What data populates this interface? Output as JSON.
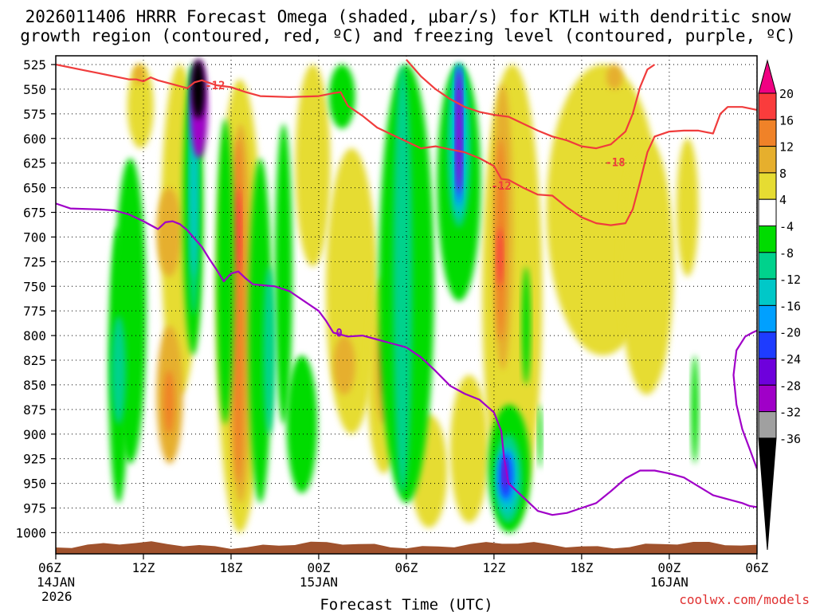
{
  "chart_data": {
    "type": "heatmap",
    "title_line1": "2026011406 HRRR Forecast Omega (shaded, μbar/s) for KTLH with dendritic snow",
    "title_line2": "growth region (contoured, red, ºC) and freezing level (contoured, purple, ºC)",
    "xlabel": "Forecast Time (UTC)",
    "credit": "coolwx.com/models",
    "ylabel": "",
    "y_axis": {
      "unit": "hPa",
      "range": [
        1010,
        520
      ],
      "ticks": [
        "525",
        "550",
        "575",
        "600",
        "625",
        "650",
        "675",
        "700",
        "725",
        "750",
        "775",
        "800",
        "825",
        "850",
        "875",
        "900",
        "925",
        "950",
        "975",
        "1000"
      ]
    },
    "x_axis": {
      "unit": "forecast hour",
      "range": [
        0,
        48
      ],
      "ticks": [
        {
          "hour": 0,
          "l1": "06Z",
          "l2": "14JAN",
          "l3": "2026"
        },
        {
          "hour": 6,
          "l1": "12Z",
          "l2": "",
          "l3": ""
        },
        {
          "hour": 12,
          "l1": "18Z",
          "l2": "",
          "l3": ""
        },
        {
          "hour": 18,
          "l1": "00Z",
          "l2": "15JAN",
          "l3": ""
        },
        {
          "hour": 24,
          "l1": "06Z",
          "l2": "",
          "l3": ""
        },
        {
          "hour": 30,
          "l1": "12Z",
          "l2": "",
          "l3": ""
        },
        {
          "hour": 36,
          "l1": "18Z",
          "l2": "",
          "l3": ""
        },
        {
          "hour": 42,
          "l1": "00Z",
          "l2": "16JAN",
          "l3": ""
        },
        {
          "hour": 48,
          "l1": "06Z",
          "l2": "",
          "l3": ""
        }
      ]
    },
    "colorbar": {
      "labels": [
        "20",
        "16",
        "12",
        "8",
        "4",
        "-4",
        "-8",
        "-12",
        "-16",
        "-20",
        "-24",
        "-28",
        "-32",
        "-36"
      ],
      "bins": [
        {
          "range": "-36 and below",
          "color": "#000000"
        },
        {
          "range": "-36 to -32",
          "color": "#a0a0a0"
        },
        {
          "range": "-32 to -28",
          "color": "#a000c8"
        },
        {
          "range": "-28 to -24",
          "color": "#6e00dc"
        },
        {
          "range": "-24 to -20",
          "color": "#1e3cff"
        },
        {
          "range": "-20 to -16",
          "color": "#00a0ff"
        },
        {
          "range": "-16 to -12",
          "color": "#00c8c8"
        },
        {
          "range": "-12 to -8",
          "color": "#00d28c"
        },
        {
          "range": "-8 to -4",
          "color": "#00dc00"
        },
        {
          "range": "-4 to 4",
          "color": "#ffffff"
        },
        {
          "range": "4 to 8",
          "color": "#e6dc32"
        },
        {
          "range": "8 to 12",
          "color": "#e6af2d"
        },
        {
          "range": "12 to 16",
          "color": "#f08228"
        },
        {
          "range": "16 to 20",
          "color": "#fa3c3c"
        },
        {
          "range": "20 and above",
          "color": "#f00082"
        }
      ]
    },
    "shaded_regions": [
      {
        "value": 5,
        "t0": 4.9,
        "t1": 6.7,
        "p0": 525,
        "p1": 610
      },
      {
        "value": 5,
        "t0": 7.2,
        "t1": 9.8,
        "p0": 525,
        "p1": 860
      },
      {
        "value": 5,
        "t0": 11.0,
        "t1": 14.2,
        "p0": 540,
        "p1": 1000
      },
      {
        "value": 5,
        "t0": 16.4,
        "t1": 18.8,
        "p0": 525,
        "p1": 730
      },
      {
        "value": 5,
        "t0": 18.5,
        "t1": 22.0,
        "p0": 610,
        "p1": 900
      },
      {
        "value": 5,
        "t0": 21.3,
        "t1": 23.6,
        "p0": 740,
        "p1": 940
      },
      {
        "value": 5,
        "t0": 24.3,
        "t1": 26.8,
        "p0": 880,
        "p1": 995
      },
      {
        "value": 5,
        "t0": 27.0,
        "t1": 29.6,
        "p0": 840,
        "p1": 990
      },
      {
        "value": 5,
        "t0": 29.2,
        "t1": 33.3,
        "p0": 525,
        "p1": 990
      },
      {
        "value": 5,
        "t0": 33.6,
        "t1": 41.3,
        "p0": 525,
        "p1": 820
      },
      {
        "value": 5,
        "t0": 38.6,
        "t1": 42.3,
        "p0": 600,
        "p1": 860
      },
      {
        "value": 5,
        "t0": 42.5,
        "t1": 44.0,
        "p0": 600,
        "p1": 740
      },
      {
        "value": 9,
        "t0": 5.3,
        "t1": 6.1,
        "p0": 525,
        "p1": 545
      },
      {
        "value": 9,
        "t0": 6.9,
        "t1": 8.6,
        "p0": 650,
        "p1": 740
      },
      {
        "value": 9,
        "t0": 6.9,
        "t1": 8.7,
        "p0": 790,
        "p1": 930
      },
      {
        "value": 9,
        "t0": 11.8,
        "t1": 13.5,
        "p0": 585,
        "p1": 970
      },
      {
        "value": 9,
        "t0": 19.0,
        "t1": 20.5,
        "p0": 800,
        "p1": 860
      },
      {
        "value": 9,
        "t0": 21.9,
        "t1": 23.0,
        "p0": 780,
        "p1": 890
      },
      {
        "value": 9,
        "t0": 29.9,
        "t1": 31.3,
        "p0": 545,
        "p1": 835
      },
      {
        "value": 9,
        "t0": 37.7,
        "t1": 38.8,
        "p0": 525,
        "p1": 550
      },
      {
        "value": 13,
        "t0": 12.1,
        "t1": 12.9,
        "p0": 600,
        "p1": 950
      },
      {
        "value": 13,
        "t0": 22.2,
        "t1": 22.8,
        "p0": 805,
        "p1": 860
      },
      {
        "value": 13,
        "t0": 30.1,
        "t1": 30.8,
        "p0": 600,
        "p1": 805
      },
      {
        "value": 13,
        "t0": 7.4,
        "t1": 8.1,
        "p0": 835,
        "p1": 900
      },
      {
        "value": 18,
        "t0": 12.3,
        "t1": 12.7,
        "p0": 650,
        "p1": 740
      },
      {
        "value": 18,
        "t0": 30.2,
        "t1": 30.6,
        "p0": 690,
        "p1": 750
      },
      {
        "value": -6,
        "t0": 4.0,
        "t1": 6.2,
        "p0": 620,
        "p1": 930
      },
      {
        "value": -6,
        "t0": 3.6,
        "t1": 5.0,
        "p0": 690,
        "p1": 970
      },
      {
        "value": -6,
        "t0": 8.7,
        "t1": 10.1,
        "p0": 525,
        "p1": 820
      },
      {
        "value": -6,
        "t0": 11.0,
        "t1": 12.2,
        "p0": 580,
        "p1": 890
      },
      {
        "value": -6,
        "t0": 13.2,
        "t1": 14.8,
        "p0": 620,
        "p1": 970
      },
      {
        "value": -6,
        "t0": 15.0,
        "t1": 16.2,
        "p0": 585,
        "p1": 890
      },
      {
        "value": -6,
        "t0": 15.8,
        "t1": 17.9,
        "p0": 820,
        "p1": 960
      },
      {
        "value": -6,
        "t0": 18.7,
        "t1": 20.5,
        "p0": 525,
        "p1": 590
      },
      {
        "value": -6,
        "t0": 22.1,
        "t1": 25.9,
        "p0": 525,
        "p1": 970
      },
      {
        "value": -6,
        "t0": 26.1,
        "t1": 29.1,
        "p0": 525,
        "p1": 765
      },
      {
        "value": -6,
        "t0": 29.6,
        "t1": 32.5,
        "p0": 870,
        "p1": 1000
      },
      {
        "value": -6,
        "t0": 31.9,
        "t1": 32.5,
        "p0": 730,
        "p1": 850
      },
      {
        "value": -6,
        "t0": 33.0,
        "t1": 33.3,
        "p0": 870,
        "p1": 935
      },
      {
        "value": -6,
        "t0": 43.5,
        "t1": 44.0,
        "p0": 820,
        "p1": 930
      },
      {
        "value": -10,
        "t0": 3.8,
        "t1": 4.8,
        "p0": 780,
        "p1": 890
      },
      {
        "value": -10,
        "t0": 9.1,
        "t1": 9.8,
        "p0": 525,
        "p1": 780
      },
      {
        "value": -10,
        "t0": 14.2,
        "t1": 15.0,
        "p0": 730,
        "p1": 900
      },
      {
        "value": -10,
        "t0": 23.1,
        "t1": 24.4,
        "p0": 525,
        "p1": 960
      },
      {
        "value": -10,
        "t0": 26.8,
        "t1": 28.4,
        "p0": 525,
        "p1": 690
      },
      {
        "value": -10,
        "t0": 30.0,
        "t1": 31.9,
        "p0": 900,
        "p1": 990
      },
      {
        "value": -14,
        "t0": 9.2,
        "t1": 9.7,
        "p0": 540,
        "p1": 740
      },
      {
        "value": -14,
        "t0": 27.1,
        "t1": 28.1,
        "p0": 525,
        "p1": 680
      },
      {
        "value": -14,
        "t0": 30.2,
        "t1": 31.6,
        "p0": 915,
        "p1": 980
      },
      {
        "value": -18,
        "t0": 9.3,
        "t1": 9.6,
        "p0": 545,
        "p1": 600
      },
      {
        "value": -18,
        "t0": 27.3,
        "t1": 27.9,
        "p0": 525,
        "p1": 670
      },
      {
        "value": -18,
        "t0": 30.3,
        "t1": 31.4,
        "p0": 915,
        "p1": 970
      },
      {
        "value": -22,
        "t0": 27.4,
        "t1": 27.8,
        "p0": 525,
        "p1": 665
      },
      {
        "value": -22,
        "t0": 30.4,
        "t1": 31.2,
        "p0": 920,
        "p1": 965
      },
      {
        "value": -30,
        "t0": 9.2,
        "t1": 10.4,
        "p0": 520,
        "p1": 620
      },
      {
        "value": -30,
        "t0": 27.4,
        "t1": 27.8,
        "p0": 530,
        "p1": 655
      },
      {
        "value": -30,
        "t0": 30.6,
        "t1": 30.9,
        "p0": 925,
        "p1": 955
      },
      {
        "value": -38,
        "t0": 9.3,
        "t1": 10.2,
        "p0": 520,
        "p1": 580
      }
    ],
    "contours": {
      "dendritic_minus12": [
        [
          0,
          525
        ],
        [
          2,
          531
        ],
        [
          3,
          534
        ],
        [
          5,
          540
        ],
        [
          5.5,
          540
        ],
        [
          6,
          542
        ],
        [
          6.5,
          538
        ],
        [
          7,
          541
        ],
        [
          8,
          545
        ],
        [
          9,
          549
        ],
        [
          9.5,
          543
        ],
        [
          10,
          541
        ],
        [
          11,
          546
        ],
        [
          12,
          548
        ],
        [
          13,
          553
        ],
        [
          14,
          557
        ],
        [
          16,
          558
        ],
        [
          18,
          557
        ],
        [
          19,
          554
        ],
        [
          19.5,
          553
        ],
        [
          20,
          567
        ],
        [
          21,
          577
        ],
        [
          22,
          589
        ],
        [
          24,
          603
        ],
        [
          25,
          610
        ],
        [
          26,
          608
        ],
        [
          27,
          611
        ],
        [
          28,
          614
        ],
        [
          29,
          620
        ],
        [
          30,
          628
        ],
        [
          30.5,
          641
        ],
        [
          31,
          642
        ],
        [
          32,
          650
        ],
        [
          33,
          657
        ],
        [
          34,
          658
        ],
        [
          35,
          670
        ],
        [
          36,
          680
        ],
        [
          37,
          686
        ],
        [
          38,
          688
        ],
        [
          39,
          686
        ],
        [
          39.5,
          672
        ],
        [
          40,
          644
        ],
        [
          40.5,
          614
        ],
        [
          41,
          598
        ],
        [
          42,
          593
        ],
        [
          43,
          592
        ],
        [
          44,
          592
        ],
        [
          45,
          595
        ],
        [
          45.5,
          575
        ],
        [
          46,
          568
        ],
        [
          47,
          568
        ],
        [
          48,
          571
        ]
      ],
      "dendritic_minus18": [
        [
          24,
          520
        ],
        [
          25,
          537
        ],
        [
          26,
          550
        ],
        [
          27,
          560
        ],
        [
          28,
          568
        ],
        [
          29,
          573
        ],
        [
          30,
          576
        ],
        [
          31,
          578
        ],
        [
          32,
          585
        ],
        [
          33,
          592
        ],
        [
          34,
          598
        ],
        [
          35,
          602
        ],
        [
          36,
          608
        ],
        [
          37,
          610
        ],
        [
          38,
          606
        ],
        [
          39,
          593
        ],
        [
          39.5,
          575
        ],
        [
          40,
          548
        ],
        [
          40.5,
          530
        ],
        [
          41,
          525
        ]
      ],
      "freezing_level": [
        [
          0,
          666
        ],
        [
          1,
          671
        ],
        [
          3,
          672
        ],
        [
          4,
          673
        ],
        [
          5,
          677
        ],
        [
          6,
          684
        ],
        [
          7,
          692
        ],
        [
          7.5,
          685
        ],
        [
          8,
          684
        ],
        [
          8.5,
          687
        ],
        [
          9,
          693
        ],
        [
          10,
          710
        ],
        [
          10.5,
          722
        ],
        [
          11,
          733
        ],
        [
          11.5,
          745
        ],
        [
          12,
          737
        ],
        [
          12.5,
          735
        ],
        [
          13,
          742
        ],
        [
          13.5,
          748
        ],
        [
          15,
          750
        ],
        [
          16,
          755
        ],
        [
          17,
          765
        ],
        [
          18,
          775
        ],
        [
          18.5,
          785
        ],
        [
          19,
          797
        ],
        [
          20,
          801
        ],
        [
          21,
          800
        ],
        [
          22,
          804
        ],
        [
          23,
          808
        ],
        [
          24,
          812
        ],
        [
          25,
          822
        ],
        [
          26,
          836
        ],
        [
          27,
          851
        ],
        [
          28,
          859
        ],
        [
          29,
          865
        ],
        [
          30,
          878
        ],
        [
          30.5,
          897
        ],
        [
          30.7,
          925
        ],
        [
          31,
          950
        ],
        [
          32,
          964
        ],
        [
          33,
          978
        ],
        [
          34,
          982
        ],
        [
          35,
          980
        ],
        [
          36,
          975
        ],
        [
          37,
          970
        ],
        [
          38,
          958
        ],
        [
          39,
          945
        ],
        [
          40,
          937
        ],
        [
          41,
          937
        ],
        [
          42,
          940
        ],
        [
          43,
          944
        ],
        [
          44,
          953
        ],
        [
          45,
          962
        ],
        [
          46,
          966
        ],
        [
          47,
          970
        ],
        [
          47.5,
          973
        ],
        [
          48,
          974
        ]
      ],
      "freezing_level_right": [
        [
          48,
          795
        ],
        [
          47.7,
          797
        ],
        [
          47.2,
          801
        ],
        [
          46.6,
          815
        ],
        [
          46.4,
          840
        ],
        [
          46.6,
          870
        ],
        [
          47.0,
          895
        ],
        [
          47.5,
          915
        ],
        [
          48,
          935
        ]
      ],
      "labels": [
        {
          "text": "-12",
          "hour": 10.9,
          "p": 546,
          "kind": "red"
        },
        {
          "text": "-12",
          "hour": 30.5,
          "p": 648,
          "kind": "red"
        },
        {
          "text": "-18",
          "hour": 38.3,
          "p": 624,
          "kind": "red"
        },
        {
          "text": "0",
          "hour": 19.4,
          "p": 797,
          "kind": "purple"
        }
      ]
    },
    "terrain_color": "#a0522d",
    "dendritic_color": "#f03c3c",
    "freezing_color": "#a000c8"
  }
}
